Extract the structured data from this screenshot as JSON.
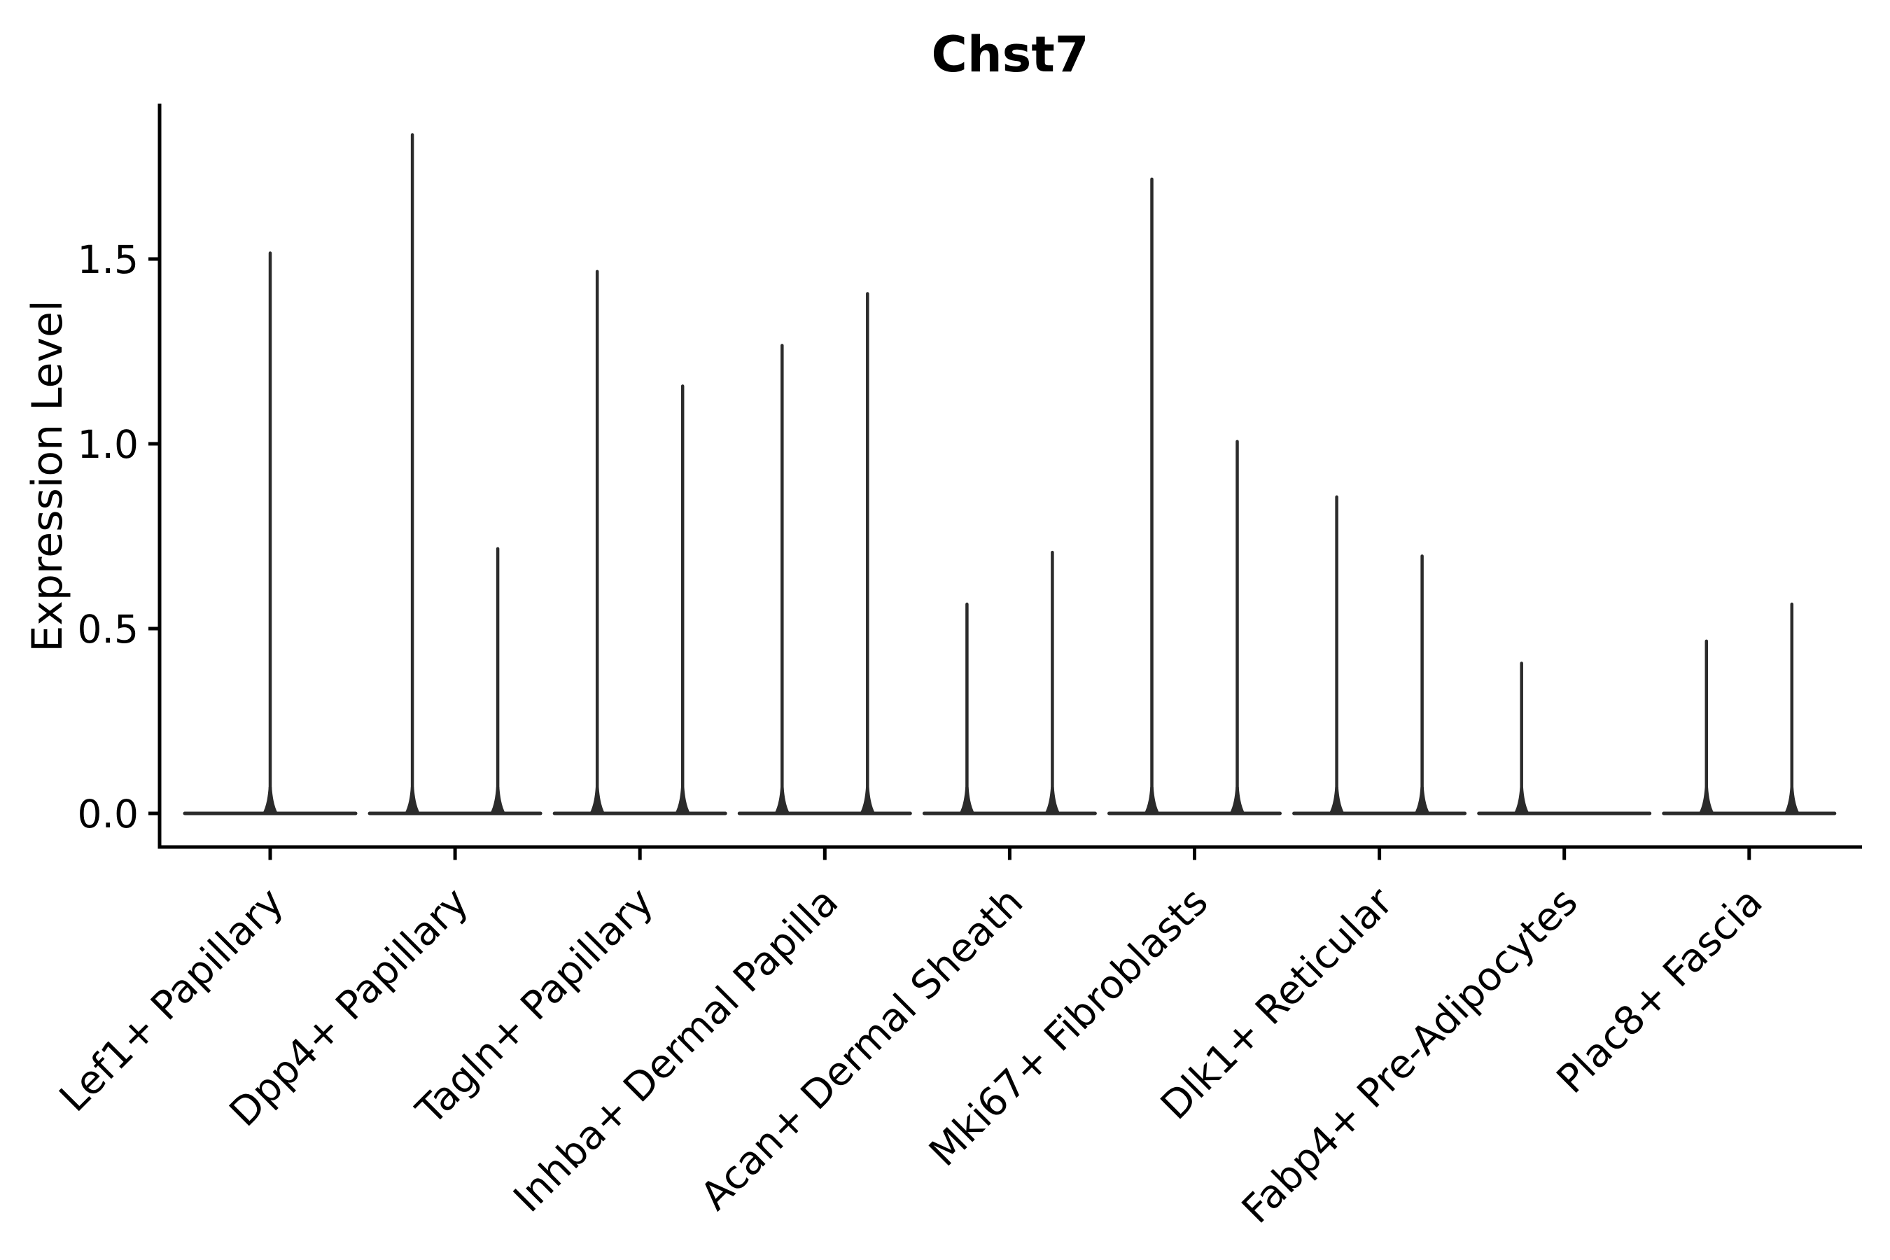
{
  "figure": {
    "background": "#ffffff"
  },
  "chart_data": {
    "type": "violin",
    "title": "Chst7",
    "ylabel": "Expression Level",
    "xlabel": "",
    "grid": false,
    "legend": "none",
    "ylim": [
      -0.09,
      1.92
    ],
    "yticks": [
      0.0,
      0.5,
      1.0,
      1.5
    ],
    "ytick_labels": [
      "0.0",
      "0.5",
      "1.0",
      "1.5"
    ],
    "x_tick_rotation_deg": 45,
    "baseline_value": 0.0,
    "colors": {
      "violin_stroke": "#2b2b2b",
      "axis": "#000000",
      "text": "#000000",
      "background": "#ffffff"
    },
    "categories": [
      {
        "label": "Lef1+ Papillary",
        "violins": [
          {
            "side": "center",
            "max_expression": 1.52
          }
        ]
      },
      {
        "label": "Dpp4+ Papillary",
        "violins": [
          {
            "side": "left",
            "max_expression": 1.84
          },
          {
            "side": "right",
            "max_expression": 0.72
          }
        ]
      },
      {
        "label": "Tagln+ Papillary",
        "violins": [
          {
            "side": "left",
            "max_expression": 1.47
          },
          {
            "side": "right",
            "max_expression": 1.16
          }
        ]
      },
      {
        "label": "Inhba+ Dermal Papilla",
        "violins": [
          {
            "side": "left",
            "max_expression": 1.27
          },
          {
            "side": "right",
            "max_expression": 1.41
          }
        ]
      },
      {
        "label": "Acan+ Dermal Sheath",
        "violins": [
          {
            "side": "left",
            "max_expression": 0.57
          },
          {
            "side": "right",
            "max_expression": 0.71
          }
        ]
      },
      {
        "label": "Mki67+ Fibroblasts",
        "violins": [
          {
            "side": "left",
            "max_expression": 1.72
          },
          {
            "side": "right",
            "max_expression": 1.01
          }
        ]
      },
      {
        "label": "Dlk1+ Reticular",
        "violins": [
          {
            "side": "left",
            "max_expression": 0.86
          },
          {
            "side": "right",
            "max_expression": 0.7
          }
        ]
      },
      {
        "label": "Fabp4+ Pre-Adipocytes",
        "violins": [
          {
            "side": "left",
            "max_expression": 0.41
          }
        ]
      },
      {
        "label": "Plac8+ Fascia",
        "violins": [
          {
            "side": "left",
            "max_expression": 0.47
          },
          {
            "side": "right",
            "max_expression": 0.57
          }
        ]
      }
    ]
  }
}
